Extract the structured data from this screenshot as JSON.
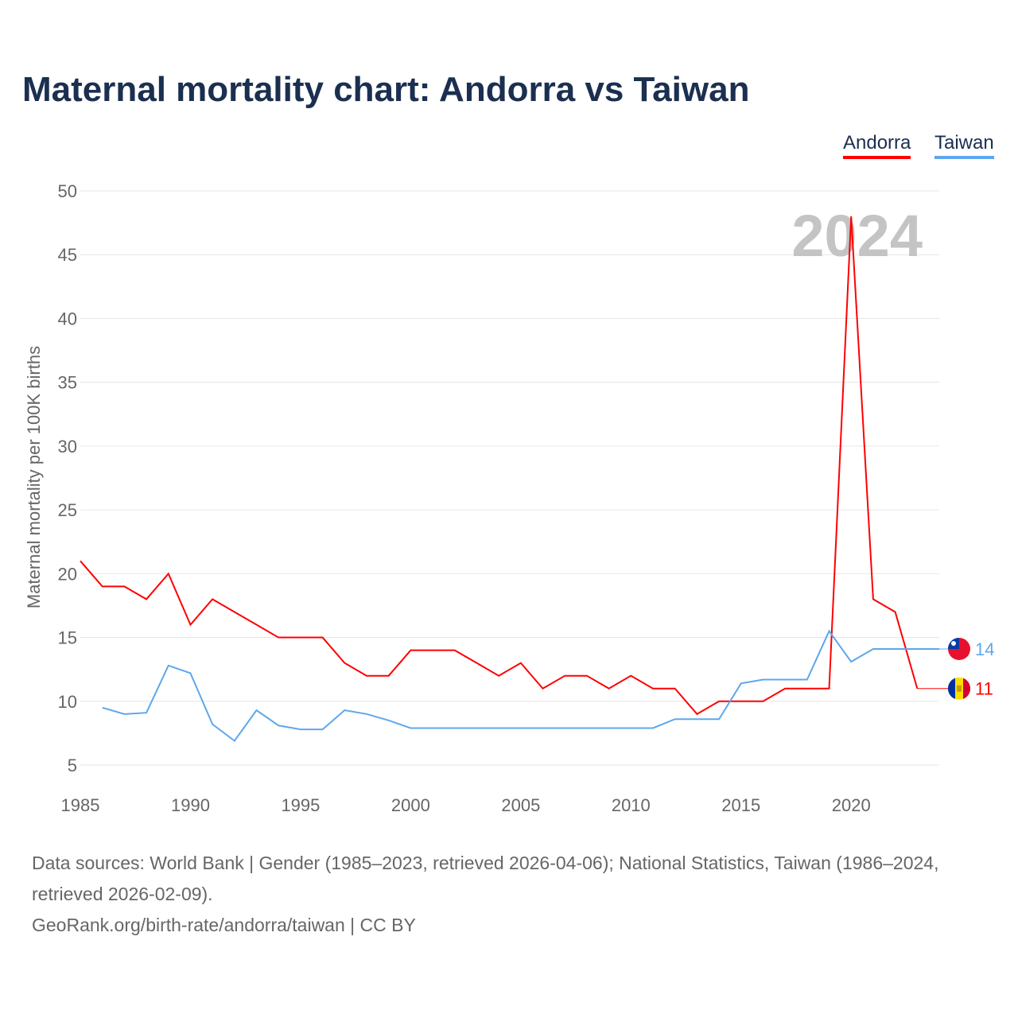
{
  "chart_data": {
    "type": "line",
    "title": "Maternal mortality chart: Andorra vs Taiwan",
    "ylabel": "Maternal mortality per 100K births",
    "xlabel": "",
    "xlim": [
      1985,
      2024
    ],
    "ylim": [
      5,
      50
    ],
    "xticks": [
      "1985",
      "1990",
      "1995",
      "2000",
      "2005",
      "2010",
      "2015",
      "2020"
    ],
    "yticks": [
      "5",
      "10",
      "15",
      "20",
      "25",
      "30",
      "35",
      "40",
      "45",
      "50"
    ],
    "watermark_year": "2024",
    "legend_placement": "top-right",
    "grid": true,
    "series": [
      {
        "name": "Andorra",
        "color": "#ff0000",
        "end_label": "11",
        "x": [
          1985,
          1986,
          1987,
          1988,
          1989,
          1990,
          1991,
          1992,
          1993,
          1994,
          1995,
          1996,
          1997,
          1998,
          1999,
          2000,
          2001,
          2002,
          2003,
          2004,
          2005,
          2006,
          2007,
          2008,
          2009,
          2010,
          2011,
          2012,
          2013,
          2014,
          2015,
          2016,
          2017,
          2018,
          2019,
          2020,
          2021,
          2022,
          2023
        ],
        "values": [
          21,
          19,
          19,
          18,
          20,
          16,
          18,
          17,
          16,
          15,
          15,
          15,
          13,
          12,
          12,
          14,
          14,
          14,
          13,
          12,
          13,
          11,
          12,
          12,
          11,
          12,
          11,
          11,
          9,
          10,
          10,
          10,
          11,
          11,
          11,
          48,
          18,
          17,
          11
        ]
      },
      {
        "name": "Taiwan",
        "color": "#5ea7ec",
        "end_label": "14",
        "x": [
          1986,
          1987,
          1988,
          1989,
          1990,
          1991,
          1992,
          1993,
          1994,
          1995,
          1996,
          1997,
          1998,
          1999,
          2000,
          2001,
          2002,
          2003,
          2004,
          2005,
          2006,
          2007,
          2008,
          2009,
          2010,
          2011,
          2012,
          2013,
          2014,
          2015,
          2016,
          2017,
          2018,
          2019,
          2020,
          2021,
          2022,
          2023,
          2024
        ],
        "values": [
          9.5,
          9.0,
          9.1,
          12.8,
          12.2,
          8.2,
          6.9,
          9.3,
          8.1,
          7.8,
          7.8,
          9.3,
          9.0,
          8.5,
          7.9,
          7.9,
          7.9,
          7.9,
          7.9,
          7.9,
          7.9,
          7.9,
          7.9,
          7.9,
          7.9,
          7.9,
          8.6,
          8.6,
          8.6,
          11.4,
          11.7,
          11.7,
          11.7,
          15.5,
          13.1,
          14.1,
          14.1,
          14.1,
          14.1
        ]
      }
    ]
  },
  "footer": {
    "line1": "Data sources: World Bank | Gender (1985–2023, retrieved 2026-04-06); National Statistics, Taiwan (1986–2024, retrieved 2026-02-09).",
    "line2": "GeoRank.org/birth-rate/andorra/taiwan | CC BY"
  }
}
